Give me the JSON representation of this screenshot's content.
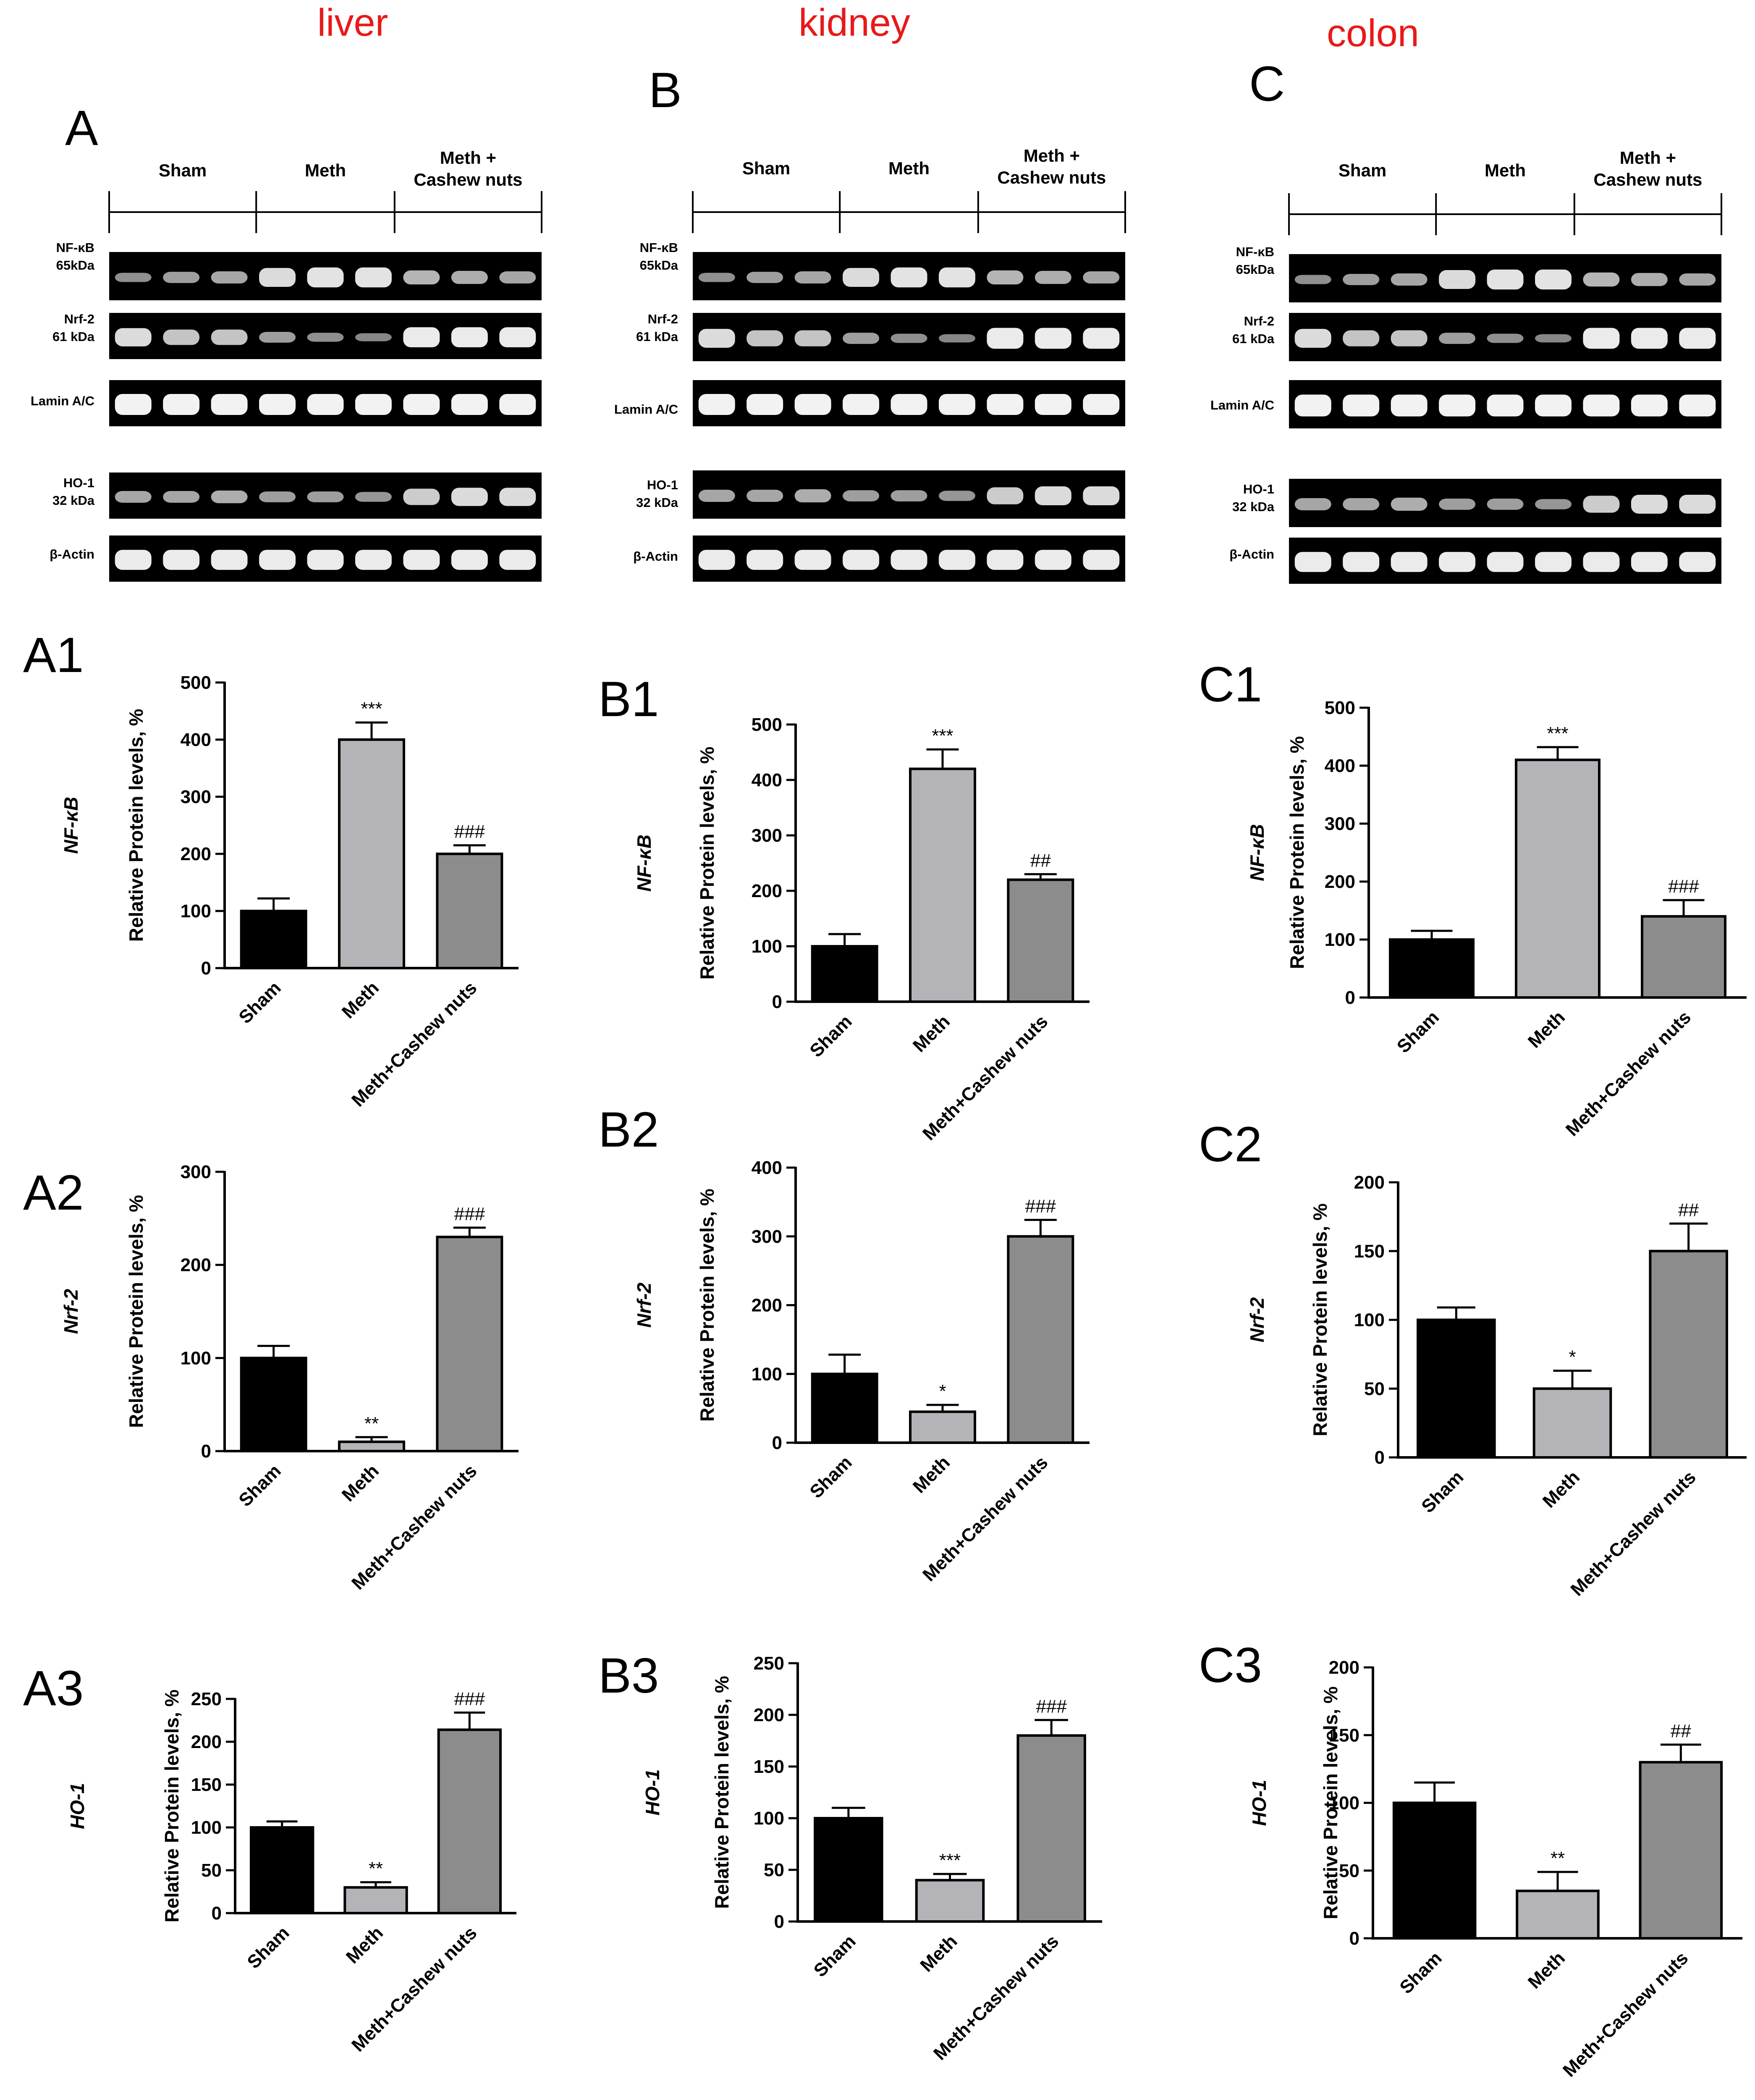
{
  "organs": [
    "liver",
    "kidney",
    "colon"
  ],
  "blot_panels": [
    {
      "label": "A",
      "groups": [
        "Sham",
        "Meth",
        "Meth +\nCashew nuts"
      ],
      "bands": [
        "NF-κB\n65kDa",
        "Nrf-2\n61 kDa",
        "Lamin A/C",
        "HO-1\n32 kDa",
        "β-Actin"
      ]
    },
    {
      "label": "B",
      "groups": [
        "Sham",
        "Meth",
        "Meth +\nCashew nuts"
      ],
      "bands": [
        "NF-κB\n65kDa",
        "Nrf-2\n61 kDa",
        "Lamin A/C",
        "HO-1\n32 kDa",
        "β-Actin"
      ]
    },
    {
      "label": "C",
      "groups": [
        "Sham",
        "Meth",
        "Meth +\nCashew nuts"
      ],
      "bands": [
        "NF-κB\n65kDa",
        "Nrf-2\n61 kDa",
        "Lamin A/C",
        "HO-1\n32 kDa",
        "β-Actin"
      ]
    }
  ],
  "colors": {
    "organ_title": "#e8191a",
    "sham_bar": "#000000",
    "meth_bar": "#b4b4b8",
    "combo_bar": "#8c8c8c",
    "blot_bg": "#000000",
    "band": "#ffffff"
  },
  "chart_data": [
    {
      "panel": "A1",
      "type": "bar",
      "protein": "NF-κB",
      "ylabel": "Relative Protein levels, %",
      "categories": [
        "Sham",
        "Meth",
        "Meth+Cashew nuts"
      ],
      "values": [
        100,
        400,
        200
      ],
      "errors": [
        22,
        30,
        15
      ],
      "significance": [
        "",
        "***",
        "###"
      ],
      "yticks": [
        0,
        100,
        200,
        300,
        400,
        500
      ],
      "ylim": [
        0,
        500
      ]
    },
    {
      "panel": "B1",
      "type": "bar",
      "protein": "NF-κB",
      "ylabel": "Relative Protein levels, %",
      "categories": [
        "Sham",
        "Meth",
        "Meth+Cashew nuts"
      ],
      "values": [
        100,
        420,
        220
      ],
      "errors": [
        22,
        35,
        10
      ],
      "significance": [
        "",
        "***",
        "##"
      ],
      "yticks": [
        0,
        100,
        200,
        300,
        400,
        500
      ],
      "ylim": [
        0,
        500
      ]
    },
    {
      "panel": "C1",
      "type": "bar",
      "protein": "NF-κB",
      "ylabel": "Relative Protein levels, %",
      "categories": [
        "Sham",
        "Meth",
        "Meth+Cashew nuts"
      ],
      "values": [
        100,
        410,
        140
      ],
      "errors": [
        15,
        22,
        28
      ],
      "significance": [
        "",
        "***",
        "###"
      ],
      "yticks": [
        0,
        100,
        200,
        300,
        400,
        500
      ],
      "ylim": [
        0,
        500
      ]
    },
    {
      "panel": "A2",
      "type": "bar",
      "protein": "Nrf-2",
      "ylabel": "Relative Protein levels, %",
      "categories": [
        "Sham",
        "Meth",
        "Meth+Cashew nuts"
      ],
      "values": [
        100,
        10,
        230
      ],
      "errors": [
        13,
        5,
        10
      ],
      "significance": [
        "",
        "**",
        "###"
      ],
      "yticks": [
        0,
        100,
        200,
        300
      ],
      "ylim": [
        0,
        300
      ]
    },
    {
      "panel": "B2",
      "type": "bar",
      "protein": "Nrf-2",
      "ylabel": "Relative Protein levels, %",
      "categories": [
        "Sham",
        "Meth",
        "Meth+Cashew nuts"
      ],
      "values": [
        100,
        45,
        300
      ],
      "errors": [
        28,
        10,
        24
      ],
      "significance": [
        "",
        "*",
        "###"
      ],
      "yticks": [
        0,
        100,
        200,
        300,
        400
      ],
      "ylim": [
        0,
        400
      ]
    },
    {
      "panel": "C2",
      "type": "bar",
      "protein": "Nrf-2",
      "ylabel": "Relative Protein levels, %",
      "categories": [
        "Sham",
        "Meth",
        "Meth+Cashew nuts"
      ],
      "values": [
        100,
        50,
        150
      ],
      "errors": [
        9,
        13,
        20
      ],
      "significance": [
        "",
        "*",
        "##"
      ],
      "yticks": [
        0,
        50,
        100,
        150,
        200
      ],
      "ylim": [
        0,
        200
      ]
    },
    {
      "panel": "A3",
      "type": "bar",
      "protein": "HO-1",
      "ylabel": "Relative Protein levels, %",
      "categories": [
        "Sham",
        "Meth",
        "Meth+Cashew nuts"
      ],
      "values": [
        100,
        30,
        214
      ],
      "errors": [
        7,
        6,
        20
      ],
      "significance": [
        "",
        "**",
        "###"
      ],
      "yticks": [
        0,
        50,
        100,
        150,
        200,
        250
      ],
      "ylim": [
        0,
        250
      ]
    },
    {
      "panel": "B3",
      "type": "bar",
      "protein": "HO-1",
      "ylabel": "Relative Protein levels, %",
      "categories": [
        "Sham",
        "Meth",
        "Meth+Cashew nuts"
      ],
      "values": [
        100,
        40,
        180
      ],
      "errors": [
        10,
        6,
        15
      ],
      "significance": [
        "",
        "***",
        "###"
      ],
      "yticks": [
        0,
        50,
        100,
        150,
        200,
        250
      ],
      "ylim": [
        0,
        250
      ]
    },
    {
      "panel": "C3",
      "type": "bar",
      "protein": "HO-1",
      "ylabel": "Relative Protein levels, %",
      "categories": [
        "Sham",
        "Meth",
        "Meth+Cashew nuts"
      ],
      "values": [
        100,
        35,
        130
      ],
      "errors": [
        15,
        14,
        13
      ],
      "significance": [
        "",
        "**",
        "##"
      ],
      "yticks": [
        0,
        50,
        100,
        150,
        200
      ],
      "ylim": [
        0,
        200
      ]
    }
  ]
}
